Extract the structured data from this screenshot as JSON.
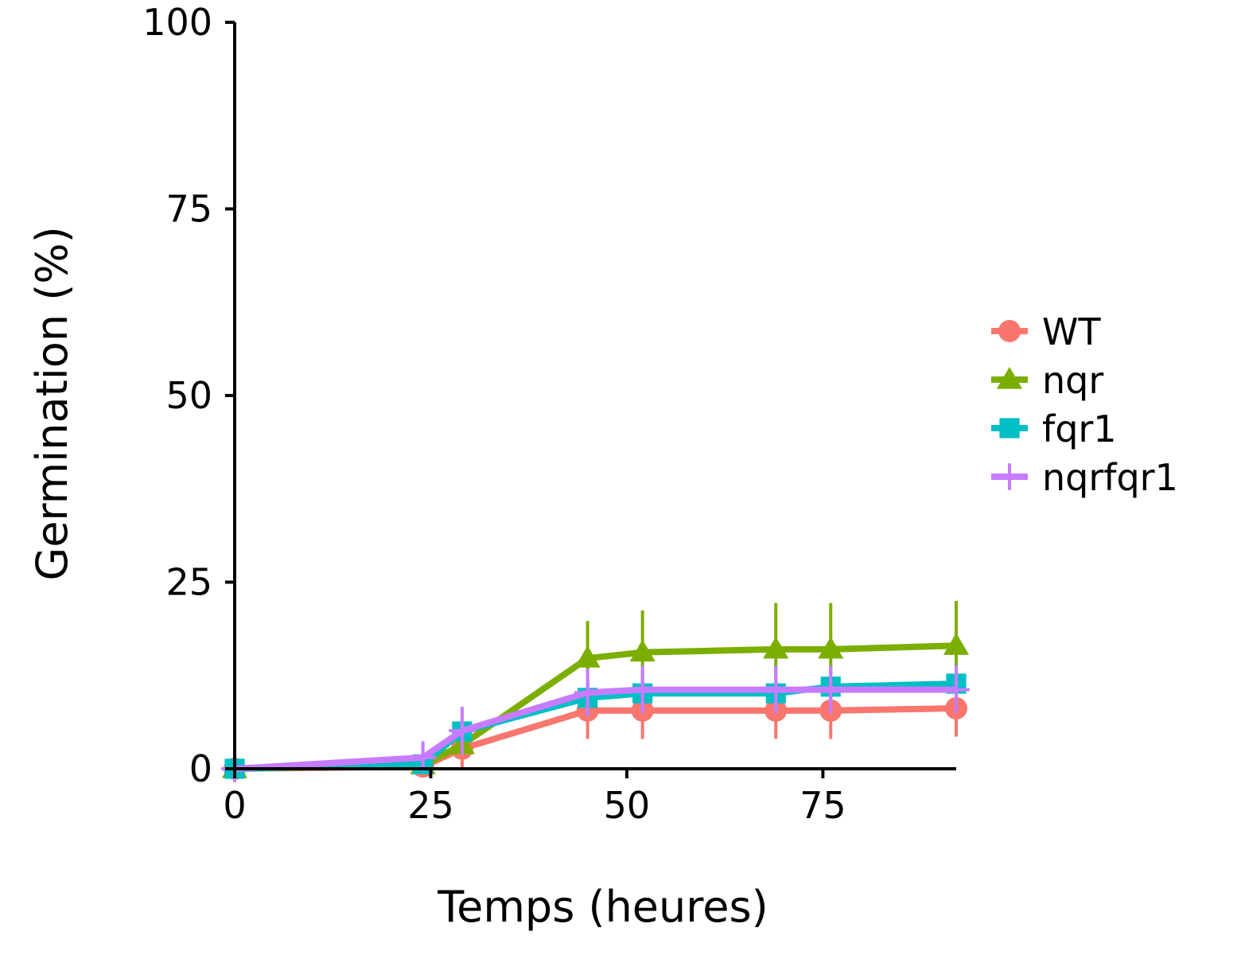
{
  "chart_data": {
    "type": "line",
    "title": "",
    "xlabel": "Temps (heures)",
    "ylabel": "Germination (%)",
    "xlim": [
      0,
      92
    ],
    "ylim": [
      0,
      100
    ],
    "x_ticks": [
      "0",
      "25",
      "50",
      "75"
    ],
    "y_ticks": [
      "0",
      "25",
      "50",
      "75",
      "100"
    ],
    "grid": false,
    "legend_position": "right",
    "x": [
      0,
      24,
      29,
      45,
      52,
      69,
      76,
      92
    ],
    "series": [
      {
        "name": "WT",
        "color": "#F8766D",
        "marker": "circle",
        "values": [
          0,
          0.3,
          2.7,
          7.8,
          7.8,
          7.8,
          7.8,
          8.1
        ],
        "error": [
          0,
          0.3,
          2.7,
          3.8,
          3.8,
          3.8,
          3.8,
          3.8
        ]
      },
      {
        "name": "nqr",
        "color": "#7CAE00",
        "marker": "triangle",
        "values": [
          0,
          0.5,
          3.2,
          14.8,
          15.6,
          16.0,
          16.0,
          16.5
        ],
        "error": [
          0,
          0.5,
          1.2,
          5.0,
          5.6,
          6.2,
          6.2,
          6.0
        ]
      },
      {
        "name": "fqr1",
        "color": "#00BFC4",
        "marker": "square",
        "values": [
          0,
          0.6,
          5.0,
          9.5,
          10.1,
          10.1,
          11.0,
          11.4
        ],
        "error": [
          0,
          0.6,
          1.2,
          2.4,
          2.5,
          2.5,
          2.5,
          2.5
        ]
      },
      {
        "name": "nqrfqr1",
        "color": "#C77CFF",
        "marker": "plus",
        "values": [
          0,
          1.5,
          5.1,
          10.2,
          10.6,
          10.6,
          10.6,
          10.6
        ],
        "error": [
          0,
          2.2,
          3.2,
          3.2,
          3.2,
          3.2,
          3.2,
          3.2
        ]
      }
    ]
  }
}
